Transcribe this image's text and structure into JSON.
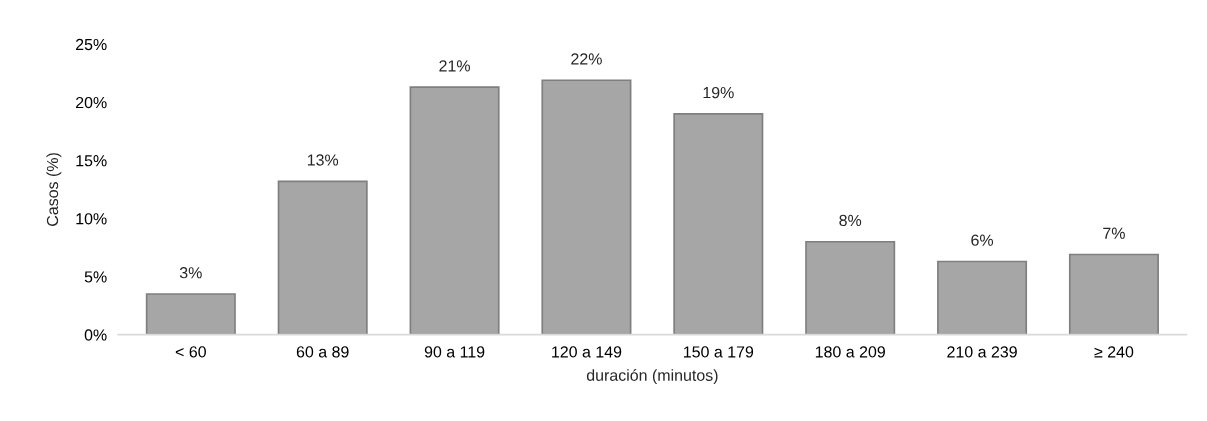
{
  "chart_data": {
    "type": "bar",
    "xlabel": "duración (minutos)",
    "ylabel": "Casos (%)",
    "categories": [
      "< 60",
      "60 a 89",
      "90 a 119",
      "120 a 149",
      "150 a 179",
      "180 a 209",
      "210 a 239",
      "≥ 240"
    ],
    "values": [
      3.5,
      13.2,
      21.3,
      21.9,
      19.0,
      8.0,
      6.3,
      6.9
    ],
    "value_labels": [
      "3%",
      "13%",
      "21%",
      "22%",
      "19%",
      "8%",
      "6%",
      "7%"
    ],
    "color": "#a6a6a6",
    "ylim": [
      0,
      25
    ],
    "yticks": [
      {
        "value": 0,
        "label": "0%"
      },
      {
        "value": 5,
        "label": "5%"
      },
      {
        "value": 10,
        "label": "10%"
      },
      {
        "value": 15,
        "label": "15%"
      },
      {
        "value": 20,
        "label": "20%"
      },
      {
        "value": 25,
        "label": "25%"
      }
    ],
    "grid": false
  }
}
